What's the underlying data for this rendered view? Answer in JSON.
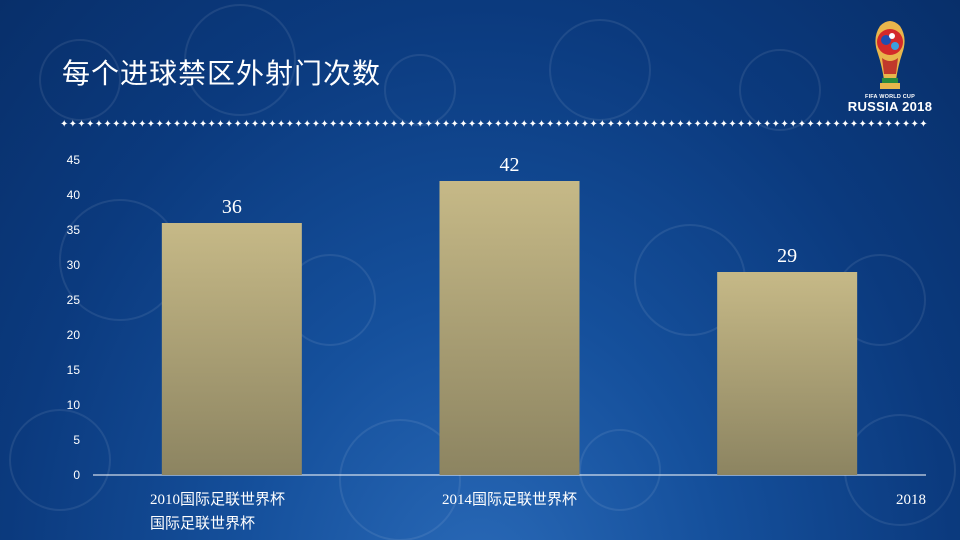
{
  "slide": {
    "title": "每个进球禁区外射门次数",
    "divider": "✦✦✦✦✦✦✦✦✦✦✦✦✦✦✦✦✦✦✦✦✦✦✦✦✦✦✦✦✦✦✦✦✦✦✦✦✦✦✦✦✦✦✦✦✦✦✦✦✦✦✦✦✦✦✦✦✦✦✦✦✦✦✦✦✦✦✦✦✦✦✦✦✦✦✦✦✦✦✦✦✦✦✦✦✦✦✦✦✦✦✦✦✦✦✦✦✦✦✦✦"
  },
  "logo": {
    "line1": "FIFA WORLD CUP",
    "line2": "RUSSIA 2018"
  },
  "colors": {
    "bar_top": "#c6b987",
    "bar_bottom": "#8c8461",
    "axis": "#ffffff"
  },
  "chart_data": {
    "type": "bar",
    "title": "每个进球禁区外射门次数",
    "categories": [
      "2010国际足联世界杯",
      "2014国际足联世界杯",
      "2018"
    ],
    "category_label_lines": [
      [
        "2010国际足联世界杯",
        "国际足联世界杯"
      ],
      [
        "2014国际足联世界杯"
      ],
      [
        "2018"
      ]
    ],
    "values": [
      36,
      42,
      29
    ],
    "data_labels": [
      "36",
      "42",
      "29"
    ],
    "y_ticks": [
      0,
      5,
      10,
      15,
      20,
      25,
      30,
      35,
      40,
      45
    ],
    "ylim": [
      0,
      45
    ],
    "grid": false,
    "legend": "none"
  }
}
